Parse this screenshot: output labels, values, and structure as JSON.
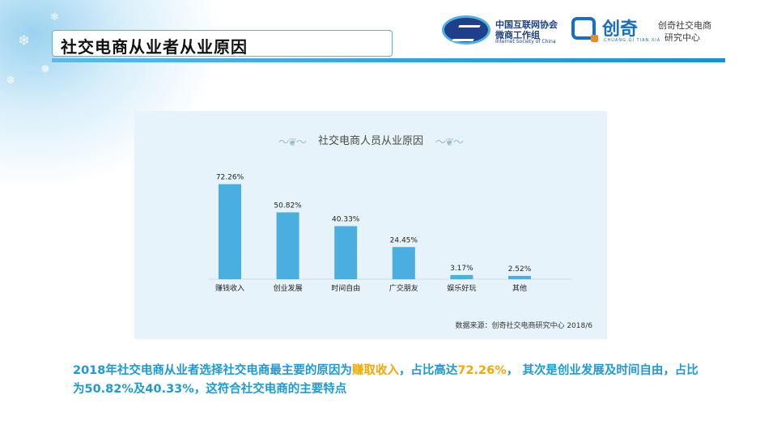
{
  "header": {
    "title": "社交电商从业者从业原因"
  },
  "logos": {
    "ioc_cn_line1": "中国互联网协会",
    "ioc_cn_line2": "微商工作组",
    "ioc_en": "Internet Society of China",
    "cq_name": "创奇",
    "cq_pinyin": "CHUANG  QI  TIAN  XIA",
    "cq_cn_line1": "创奇社交电商",
    "cq_cn_line2": "研究中心"
  },
  "chart_data": {
    "type": "bar",
    "title": "社交电商人员从业原因",
    "categories": [
      "赚钱收入",
      "创业发展",
      "时间自由",
      "广交朋友",
      "娱乐好玩",
      "其他"
    ],
    "values": [
      72.26,
      50.82,
      40.33,
      24.45,
      3.17,
      2.52
    ],
    "value_labels": [
      "72.26%",
      "50.82%",
      "40.33%",
      "24.45%",
      "3.17%",
      "2.52%"
    ],
    "ylim": [
      0,
      80
    ],
    "xlabel": "",
    "ylabel": "",
    "grid": false,
    "bar_color": "#4aaee0",
    "source": "数据来源：创奇社交电商研究中心 2018/6"
  },
  "summary": {
    "part1": "2018年社交电商从业者选择社交电商最主要的原因为",
    "highlight1": "赚取收入",
    "part2": "，占比高达",
    "highlight2": "72.26%",
    "part3": "， 其次是创业发展及时间自由，占比为50.82%及40.33%，这符合社交电商的主要特点"
  },
  "colors": {
    "accent": "#1d9ad6",
    "highlight": "#f5a800",
    "title_border": "#55b3e4"
  }
}
